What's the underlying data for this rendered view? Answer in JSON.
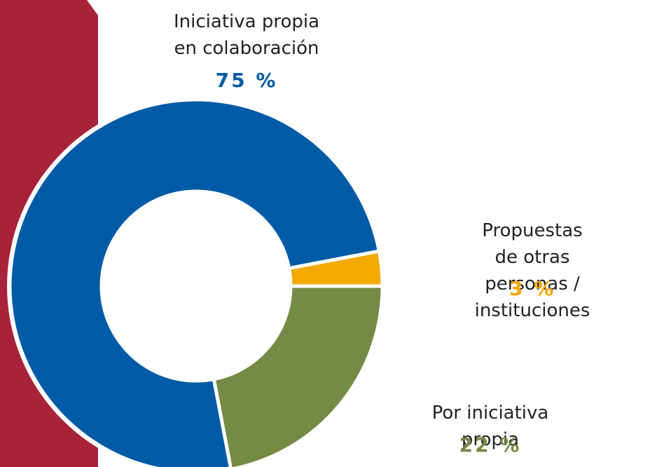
{
  "chart_data": {
    "type": "donut",
    "categories": [
      "Iniciativa propia\nen colaboración",
      "Propuestas de otras\npersonas / instituciones",
      "Por iniciativa propia"
    ],
    "values": [
      75,
      3,
      22
    ],
    "value_labels": [
      "75 %",
      "3 %",
      "22 %"
    ],
    "colors": [
      "#005ba6",
      "#f2a900",
      "#748a45"
    ]
  }
}
